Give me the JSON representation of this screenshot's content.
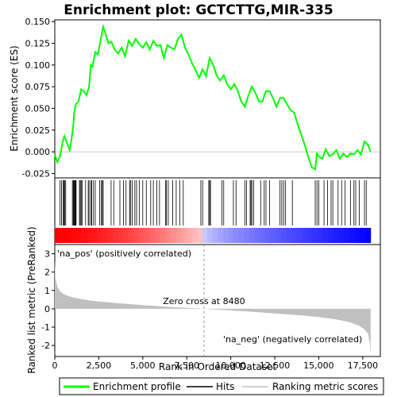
{
  "chart_data": {
    "type": "line",
    "title": "Enrichment plot: GCTCTTG,MIR-335",
    "top_panel": {
      "ylabel": "Enrichment score (ES)",
      "ylim": [
        -0.03,
        0.152
      ],
      "yticks": [
        "-0.025",
        "0.000",
        "0.025",
        "0.050",
        "0.075",
        "0.100",
        "0.125",
        "0.150"
      ],
      "ytick_values": [
        -0.025,
        0.0,
        0.025,
        0.05,
        0.075,
        0.1,
        0.125,
        0.15
      ],
      "series_name": "Enrichment profile",
      "color": "#00ff00",
      "x": [
        0,
        150,
        300,
        450,
        550,
        700,
        850,
        950,
        1050,
        1100,
        1200,
        1350,
        1500,
        1650,
        1800,
        1950,
        2050,
        2150,
        2300,
        2450,
        2600,
        2750,
        2900,
        3050,
        3200,
        3400,
        3600,
        3800,
        4000,
        4200,
        4400,
        4600,
        4800,
        5000,
        5200,
        5400,
        5600,
        5800,
        6000,
        6200,
        6400,
        6600,
        6800,
        7000,
        7200,
        7400,
        7600,
        7800,
        8000,
        8200,
        8400,
        8600,
        8800,
        9000,
        9200,
        9400,
        9600,
        9800,
        10000,
        10200,
        10400,
        10600,
        10800,
        11000,
        11200,
        11400,
        11600,
        11800,
        12000,
        12200,
        12400,
        12600,
        12800,
        13000,
        13200,
        13400,
        13600,
        13800,
        14000,
        14200,
        14400,
        14600,
        14800,
        14900,
        15000,
        15200,
        15400,
        15600,
        15800,
        16000,
        16200,
        16400,
        16600,
        16800,
        17000,
        17200,
        17400,
        17600,
        17800,
        17950
      ],
      "y": [
        -0.003,
        -0.012,
        -0.005,
        0.012,
        0.018,
        0.01,
        0.002,
        0.015,
        0.03,
        0.045,
        0.055,
        0.058,
        0.072,
        0.07,
        0.065,
        0.075,
        0.1,
        0.098,
        0.115,
        0.112,
        0.128,
        0.144,
        0.135,
        0.125,
        0.127,
        0.118,
        0.113,
        0.12,
        0.11,
        0.128,
        0.122,
        0.13,
        0.124,
        0.12,
        0.126,
        0.118,
        0.128,
        0.122,
        0.123,
        0.108,
        0.123,
        0.12,
        0.118,
        0.13,
        0.135,
        0.12,
        0.112,
        0.102,
        0.094,
        0.085,
        0.095,
        0.087,
        0.108,
        0.1,
        0.088,
        0.082,
        0.088,
        0.078,
        0.072,
        0.078,
        0.07,
        0.058,
        0.052,
        0.065,
        0.075,
        0.068,
        0.058,
        0.058,
        0.07,
        0.07,
        0.062,
        0.052,
        0.062,
        0.062,
        0.055,
        0.048,
        0.045,
        0.032,
        0.02,
        0.008,
        -0.005,
        -0.018,
        -0.02,
        -0.002,
        -0.005,
        -0.008,
        0.003,
        -0.005,
        -0.003,
        0.002,
        -0.008,
        -0.002,
        -0.006,
        -0.002,
        -0.003,
        0.002,
        -0.003,
        0.012,
        0.008,
        0.0
      ]
    },
    "hits_panel": {
      "hits": [
        300,
        380,
        470,
        520,
        560,
        620,
        1000,
        1050,
        1080,
        1120,
        1150,
        1180,
        1210,
        1400,
        1450,
        1500,
        1550,
        1750,
        1900,
        1950,
        2050,
        2100,
        2200,
        2300,
        2550,
        2650,
        2700,
        2750,
        3200,
        3350,
        3700,
        3900,
        4050,
        4250,
        4300,
        4400,
        4550,
        4650,
        4800,
        5000,
        5200,
        5450,
        5600,
        5800,
        5950,
        6300,
        6350,
        6450,
        6700,
        6900,
        7100,
        7300,
        8300,
        8400,
        8750,
        8800,
        8850,
        9500,
        9600,
        10150,
        10300,
        10800,
        10900,
        11100,
        11150,
        11200,
        11300,
        11700,
        11900,
        12000,
        12200,
        12800,
        12900,
        13000,
        13100,
        13500,
        14800,
        14900,
        15000,
        15300,
        15500,
        15700,
        15800,
        16100,
        16300,
        16500,
        16800,
        17000,
        17100,
        17300,
        17600,
        17700
      ]
    },
    "rank_panel": {
      "ylabel": "Ranked list metric (PreRanked)",
      "xlabel": "Rank in Ordered Dataset",
      "ylim": [
        -2.6,
        3.5
      ],
      "yticks": [
        "-2",
        "-1",
        "0",
        "1",
        "2",
        "3"
      ],
      "ytick_values": [
        -2,
        -1,
        0,
        1,
        2,
        3
      ],
      "xlim": [
        0,
        18500
      ],
      "xticks": [
        "0",
        "2,500",
        "5,000",
        "7,500",
        "10,000",
        "12,500",
        "15,000",
        "17,500"
      ],
      "xtick_values": [
        0,
        2500,
        5000,
        7500,
        10000,
        12500,
        15000,
        17500
      ],
      "metric_x": [
        0,
        50,
        150,
        300,
        500,
        800,
        1200,
        1800,
        2500,
        3500,
        5000,
        6500,
        8000,
        8480,
        9500,
        11000,
        12500,
        14000,
        15000,
        16000,
        16800,
        17300,
        17600,
        17800,
        17900,
        17950
      ],
      "metric_y": [
        2.6,
        1.6,
        1.2,
        0.95,
        0.8,
        0.68,
        0.58,
        0.48,
        0.4,
        0.31,
        0.2,
        0.1,
        0.03,
        0.0,
        -0.06,
        -0.15,
        -0.25,
        -0.36,
        -0.45,
        -0.58,
        -0.74,
        -0.92,
        -1.12,
        -1.35,
        -1.8,
        -2.55
      ],
      "zero_cross_label": "Zero cross at 8480",
      "zero_cross_x": 8480,
      "pos_label": "'na_pos' (positively correlated)",
      "neg_label": "'na_neg' (negatively correlated)",
      "fill_color": "#c0c0c0"
    },
    "legend": {
      "placement": "bottom",
      "items": [
        {
          "label": "Enrichment profile",
          "color": "#00ff00"
        },
        {
          "label": "Hits",
          "color": "#000000"
        },
        {
          "label": "Ranking metric scores",
          "color": "#c0c0c0"
        }
      ]
    },
    "colors": {
      "pos_color": "#ff0000",
      "neg_color": "#0000ff",
      "pos_label_color": "#cc0000",
      "neg_label_color": "#0000cc"
    }
  }
}
